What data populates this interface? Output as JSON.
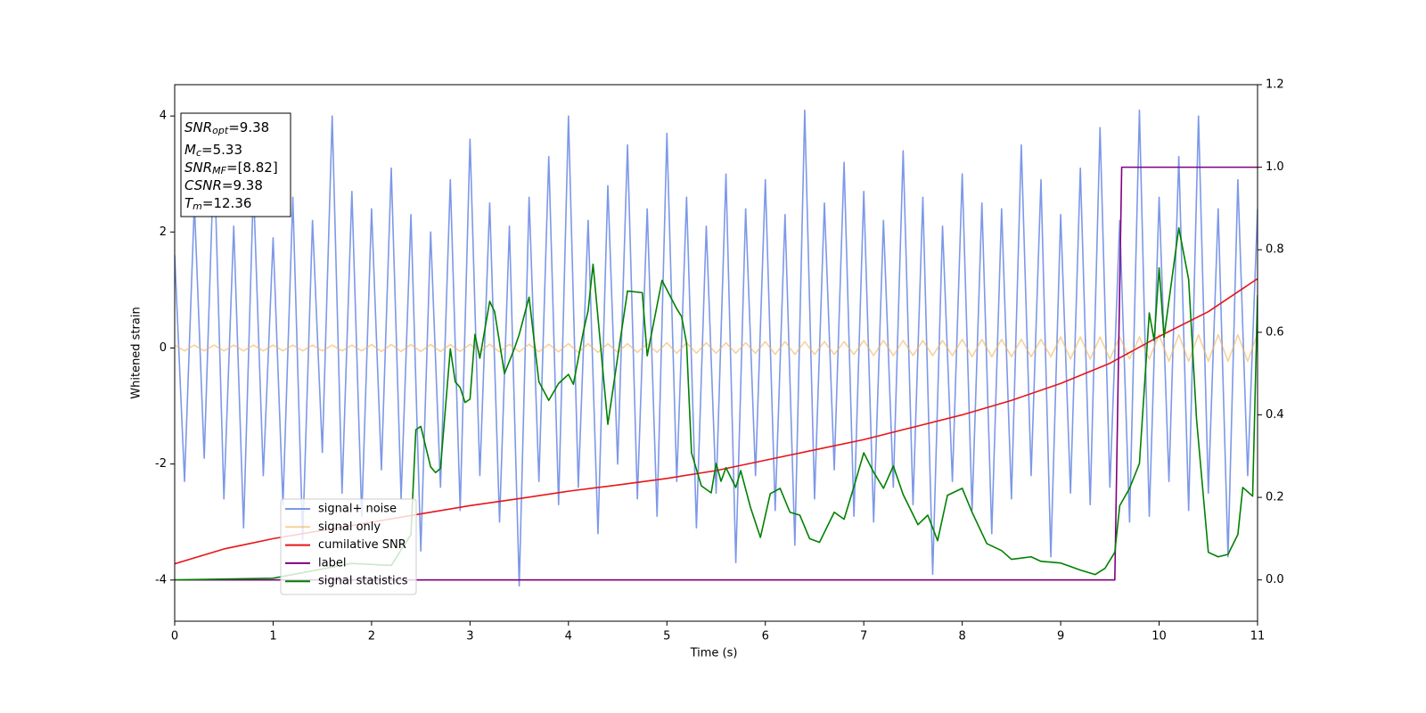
{
  "chart_data": {
    "type": "line",
    "xlabel": "Time (s)",
    "ylabel": "Whitened strain",
    "xlim": [
      0,
      11
    ],
    "xticks": [
      0,
      1,
      2,
      3,
      4,
      5,
      6,
      7,
      8,
      9,
      10,
      11
    ],
    "ylim": [
      -4.71,
      4.54
    ],
    "yticks": [
      -4,
      -2,
      0,
      2,
      4
    ],
    "y2lim": [
      -0.1,
      1.2
    ],
    "y2ticks": [
      {
        "value": 0,
        "label": "0.0"
      },
      {
        "value": 0.2,
        "label": "0.2"
      },
      {
        "value": 0.4,
        "label": "0.4"
      },
      {
        "value": 0.6,
        "label": "0.6"
      },
      {
        "value": 0.8,
        "label": "0.8"
      },
      {
        "value": 1.0,
        "label": "1.0"
      },
      {
        "value": 1.2,
        "label": "1.2"
      }
    ],
    "legend": "lower left",
    "annotations": [
      {
        "name": "SNR",
        "sub": "opt",
        "text": "=9.38"
      },
      {
        "name": "M",
        "sub": "c",
        "text": "=5.33"
      },
      {
        "name": "SNR",
        "sub": "MF",
        "text": "=[8.82]"
      },
      {
        "name": "CSNR",
        "text": "=9.38"
      },
      {
        "name": "T",
        "sub": "m",
        "text": "=12.36"
      }
    ],
    "x": [
      0,
      0.1,
      0.2,
      0.3,
      0.4,
      0.5,
      0.6,
      0.7,
      0.8,
      0.9,
      1,
      1.1,
      1.2,
      1.3,
      1.4,
      1.5,
      1.6,
      1.7,
      1.8,
      1.9,
      2,
      2.1,
      2.2,
      2.3,
      2.4,
      2.5,
      2.6,
      2.7,
      2.8,
      2.9,
      3,
      3.1,
      3.2,
      3.3,
      3.4,
      3.5,
      3.6,
      3.7,
      3.8,
      3.9,
      4,
      4.1,
      4.2,
      4.3,
      4.4,
      4.5,
      4.6,
      4.7,
      4.8,
      4.9,
      5,
      5.1,
      5.2,
      5.3,
      5.4,
      5.5,
      5.6,
      5.7,
      5.8,
      5.9,
      6,
      6.1,
      6.2,
      6.3,
      6.4,
      6.5,
      6.6,
      6.7,
      6.8,
      6.9,
      7,
      7.1,
      7.2,
      7.3,
      7.4,
      7.5,
      7.6,
      7.7,
      7.8,
      7.9,
      8,
      8.1,
      8.2,
      8.3,
      8.4,
      8.5,
      8.6,
      8.7,
      8.8,
      8.9,
      9,
      9.1,
      9.2,
      9.3,
      9.4,
      9.5,
      9.6,
      9.7,
      9.8,
      9.9,
      10,
      10.1,
      10.2,
      10.3,
      10.4,
      10.5,
      10.6,
      10.7,
      10.8,
      10.9,
      11
    ],
    "series": [
      {
        "name": "signal+ noise",
        "color": "#6f8de6",
        "opacity": 0.9,
        "values": [
          1.6,
          -2.3,
          2.5,
          -1.9,
          3.4,
          -2.6,
          2.1,
          -3.1,
          2.8,
          -2.2,
          1.9,
          -2.7,
          2.6,
          -3.3,
          2.2,
          -1.8,
          4.0,
          -2.5,
          2.7,
          -2.9,
          2.4,
          -2.1,
          3.1,
          -2.6,
          2.3,
          -3.5,
          2.0,
          -2.4,
          2.9,
          -2.8,
          3.6,
          -2.2,
          2.5,
          -3.0,
          2.1,
          -4.1,
          2.6,
          -2.3,
          3.3,
          -2.7,
          4.0,
          -2.4,
          2.2,
          -3.2,
          2.8,
          -2.0,
          3.5,
          -2.6,
          2.4,
          -2.9,
          3.7,
          -2.3,
          2.6,
          -3.1,
          2.1,
          -2.5,
          3.0,
          -3.7,
          2.4,
          -2.2,
          2.9,
          -2.8,
          2.3,
          -3.4,
          4.1,
          -2.6,
          2.5,
          -2.1,
          3.2,
          -2.9,
          2.7,
          -3.0,
          2.2,
          -2.4,
          3.4,
          -2.7,
          2.6,
          -3.9,
          2.1,
          -2.3,
          3.0,
          -2.8,
          2.5,
          -3.2,
          2.4,
          -2.6,
          3.5,
          -2.2,
          2.9,
          -3.6,
          2.3,
          -2.5,
          3.1,
          -2.7,
          3.8,
          -2.4,
          2.2,
          -3.0,
          4.1,
          -2.9,
          2.6,
          -2.3,
          3.3,
          -2.8,
          4.0,
          -2.5,
          2.4,
          -3.6,
          2.9,
          -2.2,
          2.4
        ]
      },
      {
        "name": "signal only",
        "color": "#f2b25a",
        "opacity": 0.6,
        "values": [
          0.05,
          -0.05,
          0.05,
          -0.05,
          0.05,
          -0.05,
          0.05,
          -0.05,
          0.05,
          -0.05,
          0.05,
          -0.05,
          0.05,
          -0.05,
          0.05,
          -0.05,
          0.05,
          -0.05,
          0.05,
          -0.05,
          0.06,
          -0.06,
          0.06,
          -0.06,
          0.06,
          -0.06,
          0.06,
          -0.06,
          0.06,
          -0.06,
          0.065,
          -0.065,
          0.065,
          -0.065,
          0.065,
          -0.065,
          0.065,
          -0.065,
          0.065,
          -0.065,
          0.075,
          -0.075,
          0.075,
          -0.075,
          0.075,
          -0.075,
          0.075,
          -0.075,
          0.075,
          -0.075,
          0.09,
          -0.09,
          0.09,
          -0.09,
          0.09,
          -0.09,
          0.09,
          -0.09,
          0.09,
          -0.09,
          0.11,
          -0.11,
          0.11,
          -0.11,
          0.11,
          -0.11,
          0.11,
          -0.11,
          0.11,
          -0.11,
          0.13,
          -0.13,
          0.13,
          -0.13,
          0.13,
          -0.13,
          0.13,
          -0.13,
          0.13,
          -0.13,
          0.15,
          -0.15,
          0.15,
          -0.15,
          0.15,
          -0.15,
          0.15,
          -0.15,
          0.15,
          -0.15,
          0.19,
          -0.19,
          0.19,
          -0.19,
          0.19,
          -0.19,
          0.19,
          -0.19,
          0.19,
          -0.19,
          0.23,
          -0.23,
          0.23,
          -0.23,
          0.23,
          -0.23,
          0.23,
          -0.23,
          0.23,
          -0.23,
          0.25
        ]
      },
      {
        "name": "cumilative SNR",
        "color": "#e8141a",
        "axis": "y2",
        "x": [
          0,
          0.5,
          1,
          1.5,
          2,
          2.5,
          3,
          3.5,
          4,
          4.5,
          5,
          5.5,
          6,
          6.5,
          7,
          7.5,
          8,
          8.5,
          9,
          9.5,
          10,
          10.5,
          11
        ],
        "values": [
          0.039,
          0.075,
          0.1,
          0.12,
          0.14,
          0.16,
          0.18,
          0.197,
          0.215,
          0.23,
          0.246,
          0.265,
          0.29,
          0.315,
          0.34,
          0.37,
          0.4,
          0.435,
          0.476,
          0.525,
          0.59,
          0.65,
          0.73
        ]
      },
      {
        "name": "label",
        "color": "#800080",
        "axis": "y2",
        "x": [
          0,
          9.55,
          9.62,
          11
        ],
        "values": [
          0,
          0,
          1,
          1
        ]
      },
      {
        "name": "signal statistics",
        "color": "#008000",
        "axis": "y2",
        "x": [
          0,
          1,
          1.8,
          2.2,
          2.4,
          2.45,
          2.5,
          2.6,
          2.65,
          2.7,
          2.8,
          2.85,
          2.9,
          2.95,
          3.0,
          3.05,
          3.1,
          3.2,
          3.25,
          3.35,
          3.45,
          3.5,
          3.6,
          3.7,
          3.8,
          3.9,
          4.0,
          4.05,
          4.15,
          4.2,
          4.25,
          4.4,
          4.5,
          4.6,
          4.75,
          4.8,
          4.95,
          5.0,
          5.1,
          5.15,
          5.2,
          5.25,
          5.35,
          5.45,
          5.5,
          5.55,
          5.6,
          5.7,
          5.75,
          5.85,
          5.95,
          6.05,
          6.15,
          6.25,
          6.35,
          6.45,
          6.55,
          6.7,
          6.8,
          6.9,
          7.0,
          7.1,
          7.2,
          7.3,
          7.4,
          7.55,
          7.65,
          7.75,
          7.85,
          8.0,
          8.1,
          8.25,
          8.4,
          8.5,
          8.7,
          8.8,
          9.0,
          9.2,
          9.35,
          9.45,
          9.55,
          9.6,
          9.7,
          9.8,
          9.9,
          9.95,
          10.0,
          10.05,
          10.15,
          10.2,
          10.3,
          10.38,
          10.5,
          10.6,
          10.7,
          10.8,
          10.85,
          10.95,
          11
        ],
        "values": [
          0,
          0.004,
          0.04,
          0.035,
          0.11,
          0.364,
          0.372,
          0.274,
          0.26,
          0.27,
          0.56,
          0.48,
          0.466,
          0.43,
          0.438,
          0.595,
          0.537,
          0.675,
          0.65,
          0.5,
          0.56,
          0.595,
          0.685,
          0.48,
          0.435,
          0.476,
          0.498,
          0.474,
          0.6,
          0.653,
          0.765,
          0.377,
          0.54,
          0.7,
          0.696,
          0.543,
          0.726,
          0.703,
          0.657,
          0.638,
          0.573,
          0.308,
          0.228,
          0.211,
          0.282,
          0.239,
          0.272,
          0.224,
          0.265,
          0.175,
          0.103,
          0.209,
          0.222,
          0.164,
          0.157,
          0.1,
          0.091,
          0.164,
          0.147,
          0.226,
          0.308,
          0.261,
          0.222,
          0.276,
          0.207,
          0.134,
          0.157,
          0.095,
          0.205,
          0.222,
          0.164,
          0.088,
          0.071,
          0.05,
          0.056,
          0.045,
          0.041,
          0.024,
          0.013,
          0.028,
          0.067,
          0.18,
          0.222,
          0.282,
          0.647,
          0.58,
          0.756,
          0.588,
          0.765,
          0.853,
          0.728,
          0.39,
          0.067,
          0.056,
          0.062,
          0.11,
          0.224,
          0.203,
          0.69
        ]
      }
    ]
  }
}
